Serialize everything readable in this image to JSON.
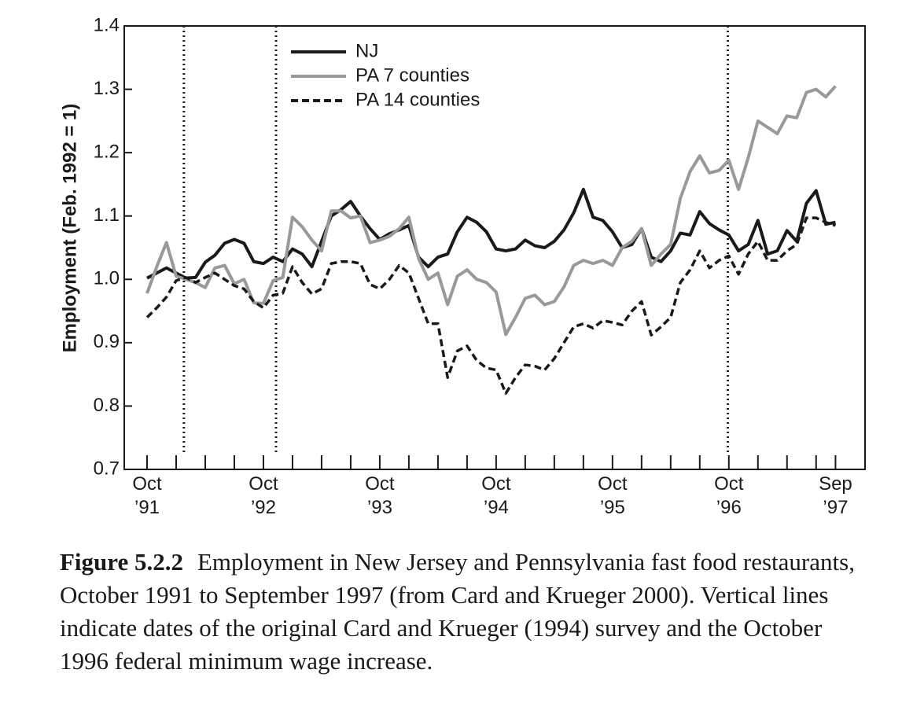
{
  "chart_data": {
    "type": "line",
    "y_label": "Employment (Feb. 1992 = 1)",
    "categories": [
      "Oct\n’91",
      null,
      null,
      null,
      null,
      null,
      null,
      null,
      null,
      null,
      null,
      null,
      "Oct\n’92",
      null,
      null,
      null,
      null,
      null,
      null,
      null,
      null,
      null,
      null,
      null,
      "Oct\n’93",
      null,
      null,
      null,
      null,
      null,
      null,
      null,
      null,
      null,
      null,
      null,
      "Oct\n’94",
      null,
      null,
      null,
      null,
      null,
      null,
      null,
      null,
      null,
      null,
      null,
      "Oct\n’95",
      null,
      null,
      null,
      null,
      null,
      null,
      null,
      null,
      null,
      null,
      null,
      "Oct\n’96",
      null,
      null,
      null,
      null,
      null,
      null,
      null,
      null,
      null,
      null,
      "Sep\n’97"
    ],
    "series": [
      {
        "name": "NJ",
        "color": "#1a1a1a",
        "dash": false,
        "values": [
          1.002,
          1.01,
          1.018,
          1.01,
          1.002,
          1.003,
          1.027,
          1.038,
          1.057,
          1.063,
          1.057,
          1.028,
          1.025,
          1.035,
          1.028,
          1.048,
          1.04,
          1.02,
          1.06,
          1.1,
          1.11,
          1.123,
          1.1,
          1.08,
          1.063,
          1.072,
          1.078,
          1.085,
          1.035,
          1.02,
          1.035,
          1.04,
          1.075,
          1.098,
          1.09,
          1.075,
          1.048,
          1.045,
          1.048,
          1.062,
          1.053,
          1.05,
          1.06,
          1.078,
          1.105,
          1.142,
          1.098,
          1.093,
          1.075,
          1.05,
          1.055,
          1.08,
          1.035,
          1.028,
          1.045,
          1.073,
          1.07,
          1.107,
          1.088,
          1.078,
          1.07,
          1.045,
          1.055,
          1.093,
          1.04,
          1.045,
          1.077,
          1.06,
          1.12,
          1.14,
          1.087,
          1.09
        ]
      },
      {
        "name": "PA 7 counties",
        "color": "#999999",
        "dash": false,
        "values": [
          0.978,
          1.02,
          1.058,
          1.005,
          1.0,
          0.995,
          0.987,
          1.018,
          1.022,
          0.993,
          1.0,
          0.963,
          0.962,
          0.998,
          1.003,
          1.098,
          1.083,
          1.062,
          1.045,
          1.108,
          1.108,
          1.097,
          1.1,
          1.058,
          1.062,
          1.068,
          1.08,
          1.098,
          1.033,
          1.0,
          1.01,
          0.96,
          1.005,
          1.015,
          1.0,
          0.995,
          0.98,
          0.913,
          0.94,
          0.97,
          0.975,
          0.96,
          0.965,
          0.988,
          1.022,
          1.03,
          1.025,
          1.03,
          1.022,
          1.05,
          1.06,
          1.08,
          1.022,
          1.04,
          1.055,
          1.128,
          1.17,
          1.195,
          1.168,
          1.172,
          1.188,
          1.142,
          1.192,
          1.25,
          1.24,
          1.23,
          1.258,
          1.255,
          1.295,
          1.3,
          1.288,
          1.305
        ]
      },
      {
        "name": "PA 14 counties",
        "color": "#1a1a1a",
        "dash": true,
        "values": [
          0.94,
          0.955,
          0.972,
          0.998,
          1.003,
          0.995,
          1.003,
          1.01,
          1.0,
          0.99,
          0.985,
          0.965,
          0.955,
          0.975,
          0.978,
          1.02,
          0.995,
          0.977,
          0.985,
          1.025,
          1.028,
          1.028,
          1.025,
          0.992,
          0.985,
          1.0,
          1.022,
          1.01,
          0.97,
          0.93,
          0.93,
          0.845,
          0.887,
          0.895,
          0.872,
          0.86,
          0.857,
          0.82,
          0.845,
          0.865,
          0.863,
          0.857,
          0.875,
          0.9,
          0.925,
          0.93,
          0.923,
          0.935,
          0.932,
          0.928,
          0.95,
          0.965,
          0.912,
          0.925,
          0.94,
          0.995,
          1.015,
          1.045,
          1.018,
          1.03,
          1.037,
          1.008,
          1.04,
          1.06,
          1.03,
          1.03,
          1.045,
          1.055,
          1.097,
          1.097,
          1.09,
          1.085
        ]
      }
    ],
    "event_lines": [
      3.8,
      13.3,
      59.9
    ],
    "ylim": [
      0.7,
      1.4
    ],
    "yticks": [
      0.7,
      0.8,
      0.9,
      {
        "value": 1,
        "label": "1.0"
      },
      1.1,
      1.2,
      1.3,
      1.4
    ],
    "legend": "top-left",
    "caption": {
      "label": "Figure 5.2.2",
      "text": "Employment in New Jersey and Pennsylvania fast food restaurants, October 1991 to September 1997 (from Card and Krueger 2000). Vertical lines indicate dates of the original Card and Krueger (1994) survey and the October 1996 federal minimum wage increase."
    }
  }
}
